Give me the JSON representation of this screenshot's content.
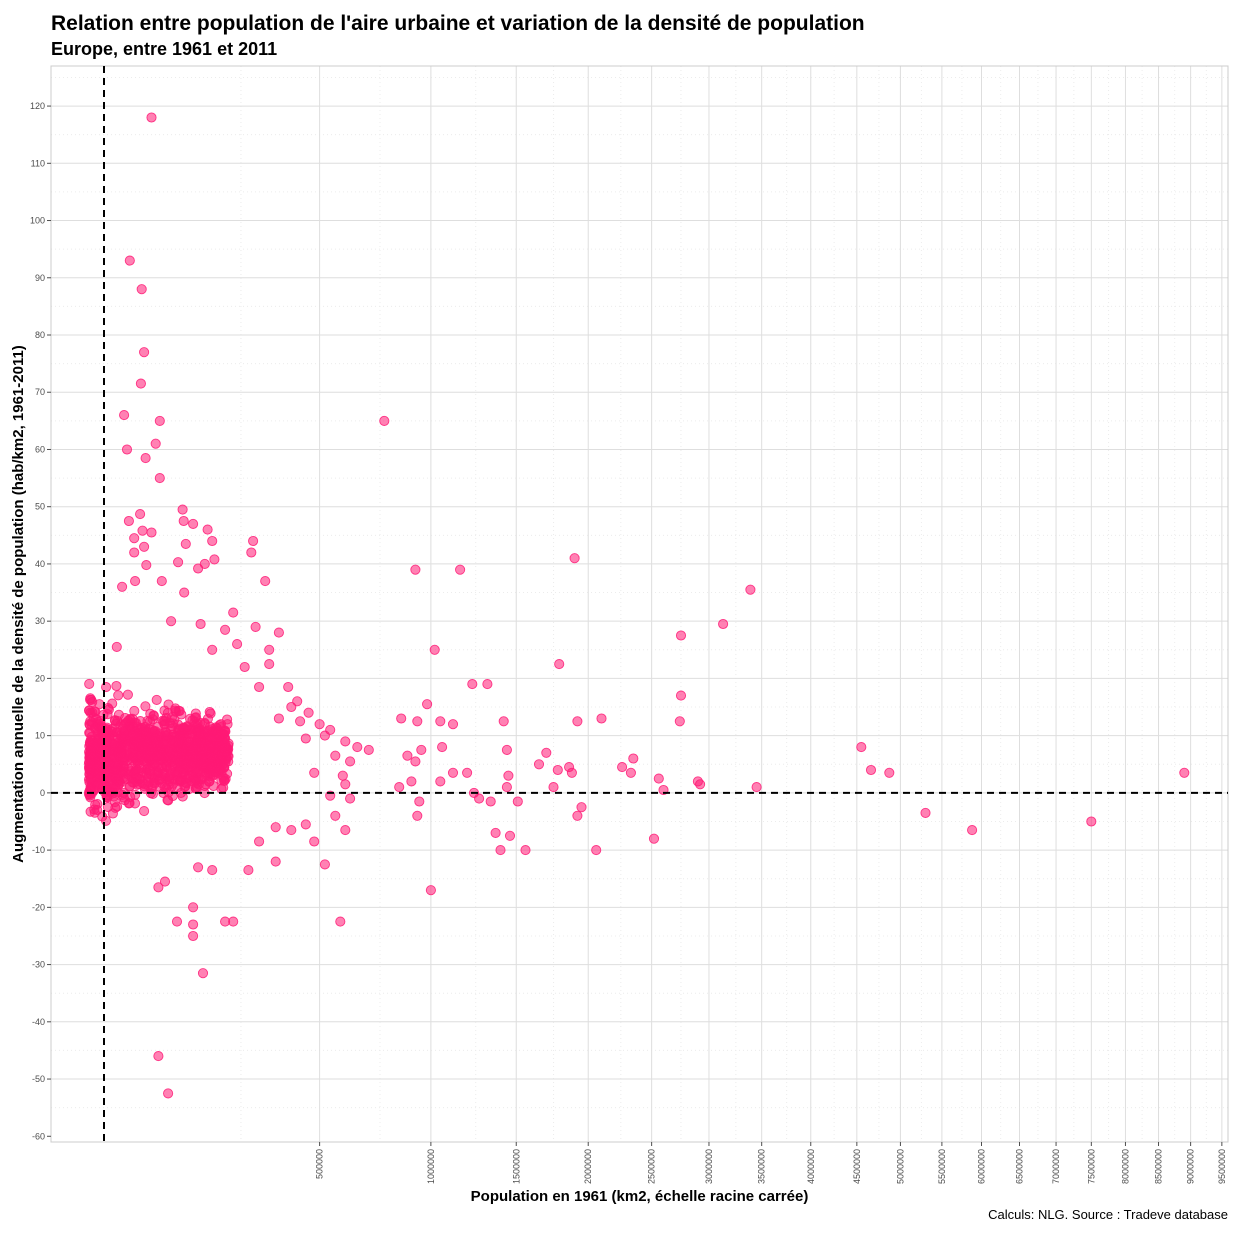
{
  "title": "Relation entre population de l'aire urbaine et variation de la densité de population",
  "subtitle": "Europe, entre 1961 et 2011",
  "caption": "Calculs: NLG. Source : Tradeve database",
  "chart_data": {
    "type": "scatter",
    "xlabel": "Population en 1961 (km2, échelle racine carrée)",
    "ylabel": "Augmentation annuelle de la densité de population (hab/km2, 1961-2011)",
    "x_scale": "sqrt",
    "xlim": [
      0,
      9600000
    ],
    "ylim": [
      -61,
      127
    ],
    "x_ticks": [
      500000,
      1000000,
      1500000,
      2000000,
      2500000,
      3000000,
      3500000,
      4000000,
      4500000,
      5000000,
      5500000,
      6000000,
      6500000,
      7000000,
      7500000,
      8000000,
      8500000,
      9000000,
      9500000
    ],
    "x_tick_labels": [
      "500000",
      "1000000",
      "1500000",
      "2000000",
      "2500000",
      "3000000",
      "3500000",
      "4000000",
      "4500000",
      "5000000",
      "5500000",
      "6000000",
      "6500000",
      "7000000",
      "7500000",
      "8000000",
      "8500000",
      "9000000",
      "9500000"
    ],
    "y_ticks": [
      -60,
      -50,
      -40,
      -30,
      -20,
      -10,
      0,
      10,
      20,
      30,
      40,
      50,
      60,
      70,
      80,
      90,
      100,
      110,
      120
    ],
    "y_tick_labels": [
      "-60",
      "-50",
      "-40",
      "-30",
      "-20",
      "-10",
      "0",
      "10",
      "20",
      "30",
      "40",
      "50",
      "60",
      "70",
      "80",
      "90",
      "100",
      "110",
      "120"
    ],
    "grid": true,
    "reference_lines": {
      "x": 0,
      "y": 0,
      "style": "dashed"
    },
    "point_color": "#ff1a75",
    "cluster": {
      "x_range": [
        10000,
        120000
      ],
      "y_range": [
        -12,
        28
      ],
      "count": 1200
    },
    "points": [
      [
        70000,
        118
      ],
      [
        43000,
        93
      ],
      [
        57000,
        88
      ],
      [
        60000,
        77
      ],
      [
        56000,
        71.5
      ],
      [
        37000,
        66
      ],
      [
        82000,
        65
      ],
      [
        40000,
        60
      ],
      [
        76000,
        61
      ],
      [
        62000,
        58.5
      ],
      [
        82000,
        55
      ],
      [
        120000,
        49.5
      ],
      [
        55000,
        48.7
      ],
      [
        42000,
        47.5
      ],
      [
        122000,
        47.5
      ],
      [
        140000,
        47
      ],
      [
        170000,
        46
      ],
      [
        58000,
        45.8
      ],
      [
        70000,
        45.5
      ],
      [
        48000,
        44.5
      ],
      [
        180000,
        44
      ],
      [
        283000,
        44
      ],
      [
        126000,
        43.5
      ],
      [
        60000,
        43
      ],
      [
        48000,
        42
      ],
      [
        278000,
        42
      ],
      [
        185000,
        40.8
      ],
      [
        112000,
        40.3
      ],
      [
        164000,
        40
      ],
      [
        63000,
        39.8
      ],
      [
        150000,
        39.2
      ],
      [
        318000,
        37
      ],
      [
        49000,
        37
      ],
      [
        85000,
        37
      ],
      [
        35000,
        36
      ],
      [
        123000,
        35
      ],
      [
        230000,
        31.5
      ],
      [
        100000,
        30
      ],
      [
        155000,
        29.5
      ],
      [
        210000,
        28.5
      ],
      [
        290000,
        29
      ],
      [
        360000,
        28
      ],
      [
        240000,
        26
      ],
      [
        180000,
        25
      ],
      [
        330000,
        25
      ],
      [
        30000,
        25.5
      ],
      [
        260000,
        22
      ],
      [
        330000,
        22.5
      ],
      [
        300000,
        18.5
      ],
      [
        390000,
        18.5
      ],
      [
        420000,
        16
      ],
      [
        400000,
        15
      ],
      [
        360000,
        13
      ],
      [
        430000,
        12.5
      ],
      [
        460000,
        14
      ],
      [
        500000,
        12
      ],
      [
        540000,
        11
      ],
      [
        450000,
        9.5
      ],
      [
        520000,
        10
      ],
      [
        600000,
        9
      ],
      [
        650000,
        8
      ],
      [
        700000,
        7.5
      ],
      [
        560000,
        6.5
      ],
      [
        620000,
        5.5
      ],
      [
        480000,
        3.5
      ],
      [
        590000,
        3
      ],
      [
        600000,
        1.5
      ],
      [
        540000,
        -0.5
      ],
      [
        620000,
        -1
      ],
      [
        560000,
        -4
      ],
      [
        450000,
        -5.5
      ],
      [
        600000,
        -6.5
      ],
      [
        400000,
        -6.5
      ],
      [
        350000,
        -6
      ],
      [
        480000,
        -8.5
      ],
      [
        300000,
        -8.5
      ],
      [
        350000,
        -12
      ],
      [
        180000,
        -13.5
      ],
      [
        150000,
        -13
      ],
      [
        270000,
        -13.5
      ],
      [
        520000,
        -12.5
      ],
      [
        80000,
        -16.5
      ],
      [
        90000,
        -15.5
      ],
      [
        140000,
        -20
      ],
      [
        110000,
        -22.5
      ],
      [
        210000,
        -22.5
      ],
      [
        230000,
        -22.5
      ],
      [
        140000,
        -23
      ],
      [
        580000,
        -22.5
      ],
      [
        140000,
        -25
      ],
      [
        160000,
        -31.5
      ],
      [
        80000,
        -46
      ],
      [
        95000,
        -52.5
      ],
      [
        770000,
        65
      ],
      [
        920000,
        39
      ],
      [
        1160000,
        39
      ],
      [
        850000,
        13
      ],
      [
        930000,
        12.5
      ],
      [
        980000,
        15.5
      ],
      [
        1050000,
        12.5
      ],
      [
        1120000,
        12
      ],
      [
        1020000,
        25
      ],
      [
        1230000,
        19
      ],
      [
        1320000,
        19
      ],
      [
        1420000,
        12.5
      ],
      [
        1440000,
        7.5
      ],
      [
        950000,
        7.5
      ],
      [
        880000,
        6.5
      ],
      [
        920000,
        5.5
      ],
      [
        1060000,
        8
      ],
      [
        840000,
        1
      ],
      [
        900000,
        2
      ],
      [
        1050000,
        2
      ],
      [
        1120000,
        3.5
      ],
      [
        1200000,
        3.5
      ],
      [
        1240000,
        0
      ],
      [
        1270000,
        -1
      ],
      [
        1340000,
        -1.5
      ],
      [
        1440000,
        1
      ],
      [
        1450000,
        3
      ],
      [
        1510000,
        -1.5
      ],
      [
        1400000,
        -10
      ],
      [
        1370000,
        -7
      ],
      [
        1460000,
        -7.5
      ],
      [
        1560000,
        -10
      ],
      [
        930000,
        -4
      ],
      [
        940000,
        -1.5
      ],
      [
        1000000,
        -17
      ],
      [
        1900000,
        41
      ],
      [
        1790000,
        22.5
      ],
      [
        1920000,
        12.5
      ],
      [
        2100000,
        13
      ],
      [
        1650000,
        5
      ],
      [
        1700000,
        7
      ],
      [
        1780000,
        4
      ],
      [
        1860000,
        4.5
      ],
      [
        1880000,
        3.5
      ],
      [
        1750000,
        1
      ],
      [
        1920000,
        -4
      ],
      [
        1950000,
        -2.5
      ],
      [
        2060000,
        -10
      ],
      [
        2260000,
        4.5
      ],
      [
        2330000,
        3.5
      ],
      [
        2350000,
        6
      ],
      [
        2560000,
        2.5
      ],
      [
        2600000,
        0.5
      ],
      [
        2750000,
        27.5
      ],
      [
        2750000,
        17
      ],
      [
        2740000,
        12.5
      ],
      [
        2900000,
        2
      ],
      [
        2920000,
        1.5
      ],
      [
        2520000,
        -8
      ],
      [
        3130000,
        29.5
      ],
      [
        3390000,
        35.5
      ],
      [
        3450000,
        1
      ],
      [
        4550000,
        8
      ],
      [
        4660000,
        4
      ],
      [
        4870000,
        3.5
      ],
      [
        5300000,
        -3.5
      ],
      [
        5880000,
        -6.5
      ],
      [
        7500000,
        -5
      ],
      [
        8900000,
        3.5
      ]
    ]
  }
}
